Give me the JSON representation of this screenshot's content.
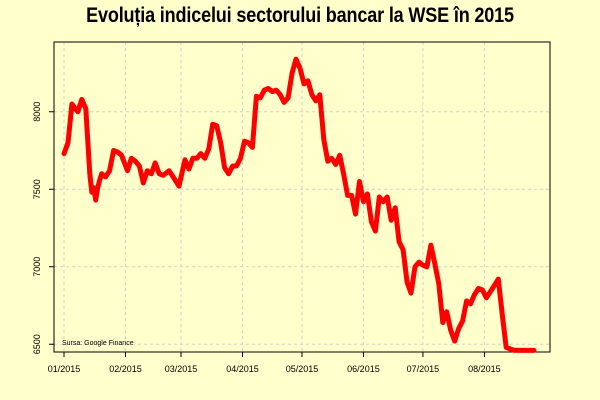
{
  "title": "Evoluția indicelui sectorului bancar la WSE în 2015",
  "source_note": "Sursa: Google Finance",
  "colors": {
    "background": "#ffffcc",
    "line": "#ff0000",
    "grid": "#cfcfcf",
    "axis": "#000000"
  },
  "chart_data": {
    "type": "line",
    "title": "Evoluția indicelui sectorului bancar la WSE în 2015",
    "xlabel": "",
    "ylabel": "",
    "grid": true,
    "ylim": [
      6450,
      8450
    ],
    "xlim": [
      "2015-01-01",
      "2015-08-26"
    ],
    "x_ticks": [
      {
        "date": "2015-01-01",
        "label": "01/2015"
      },
      {
        "date": "2015-02-01",
        "label": "02/2015"
      },
      {
        "date": "2015-03-01",
        "label": "03/2015"
      },
      {
        "date": "2015-04-01",
        "label": "04/2015"
      },
      {
        "date": "2015-05-01",
        "label": "05/2015"
      },
      {
        "date": "2015-06-01",
        "label": "06/2015"
      },
      {
        "date": "2015-07-01",
        "label": "07/2015"
      },
      {
        "date": "2015-08-01",
        "label": "08/2015"
      }
    ],
    "y_ticks": [
      6500,
      7000,
      7500,
      8000
    ],
    "series": [
      {
        "x": [
          "2015-01-01",
          "2015-01-03",
          "2015-01-05",
          "2015-01-08",
          "2015-01-10",
          "2015-01-12",
          "2015-01-14",
          "2015-01-15",
          "2015-01-16",
          "2015-01-17",
          "2015-01-18",
          "2015-01-19",
          "2015-01-20",
          "2015-01-22",
          "2015-01-24",
          "2015-01-26",
          "2015-01-28",
          "2015-01-30",
          "2015-02-02",
          "2015-02-04",
          "2015-02-06",
          "2015-02-08",
          "2015-02-10",
          "2015-02-12",
          "2015-02-14",
          "2015-02-16",
          "2015-02-18",
          "2015-02-20",
          "2015-02-23",
          "2015-02-25",
          "2015-02-28",
          "2015-03-03",
          "2015-03-05",
          "2015-03-07",
          "2015-03-09",
          "2015-03-11",
          "2015-03-13",
          "2015-03-15",
          "2015-03-17",
          "2015-03-19",
          "2015-03-21",
          "2015-03-23",
          "2015-03-25",
          "2015-03-27",
          "2015-03-29",
          "2015-03-31",
          "2015-04-02",
          "2015-04-04",
          "2015-04-06",
          "2015-04-08",
          "2015-04-10",
          "2015-04-12",
          "2015-04-14",
          "2015-04-16",
          "2015-04-18",
          "2015-04-20",
          "2015-04-22",
          "2015-04-24",
          "2015-04-26",
          "2015-04-28",
          "2015-04-30",
          "2015-05-02",
          "2015-05-04",
          "2015-05-06",
          "2015-05-08",
          "2015-05-10",
          "2015-05-12",
          "2015-05-14",
          "2015-05-16",
          "2015-05-18",
          "2015-05-20",
          "2015-05-22",
          "2015-05-24",
          "2015-05-26",
          "2015-05-28",
          "2015-05-30",
          "2015-06-01",
          "2015-06-03",
          "2015-06-05",
          "2015-06-07",
          "2015-06-09",
          "2015-06-11",
          "2015-06-13",
          "2015-06-15",
          "2015-06-17",
          "2015-06-19",
          "2015-06-21",
          "2015-06-23",
          "2015-06-25",
          "2015-06-27",
          "2015-06-29",
          "2015-07-01",
          "2015-07-03",
          "2015-07-05",
          "2015-07-07",
          "2015-07-09",
          "2015-07-11",
          "2015-07-13",
          "2015-07-15",
          "2015-07-17",
          "2015-07-19",
          "2015-07-21",
          "2015-07-23",
          "2015-07-25",
          "2015-07-27",
          "2015-07-29",
          "2015-07-31",
          "2015-08-02",
          "2015-08-04",
          "2015-08-06",
          "2015-08-08",
          "2015-08-10",
          "2015-08-12",
          "2015-08-14",
          "2015-08-16",
          "2015-08-18",
          "2015-08-20",
          "2015-08-21",
          "2015-08-22",
          "2015-08-23",
          "2015-08-24",
          "2015-08-25",
          "2015-08-26"
        ],
        "y": [
          7730,
          7800,
          8050,
          8000,
          8080,
          8020,
          7600,
          7480,
          7510,
          7430,
          7510,
          7560,
          7600,
          7580,
          7620,
          7750,
          7740,
          7720,
          7620,
          7700,
          7680,
          7650,
          7540,
          7620,
          7600,
          7670,
          7600,
          7590,
          7620,
          7580,
          7520,
          7690,
          7630,
          7700,
          7700,
          7730,
          7700,
          7760,
          7920,
          7910,
          7800,
          7640,
          7600,
          7650,
          7650,
          7700,
          7810,
          7800,
          7770,
          8100,
          8090,
          8140,
          8150,
          8130,
          8140,
          8110,
          8060,
          8090,
          8250,
          8340,
          8280,
          8180,
          8200,
          8110,
          8070,
          8110,
          7820,
          7680,
          7700,
          7660,
          7720,
          7600,
          7460,
          7460,
          7340,
          7550,
          7420,
          7470,
          7290,
          7230,
          7450,
          7420,
          7450,
          7300,
          7380,
          7160,
          7110,
          6900,
          6830,
          7000,
          7030,
          7010,
          7000,
          7140,
          7020,
          6890,
          6640,
          6710,
          6590,
          6520,
          6600,
          6650,
          6780,
          6760,
          6820,
          6860,
          6850,
          6800,
          6840,
          6880,
          6920,
          6690,
          6480,
          6470,
          6460,
          6460,
          6460,
          6460,
          6460,
          6460,
          6460,
          6460,
          6460
        ],
        "comment_removed": ""
      }
    ]
  },
  "labels": {
    "x_tick_labels": [
      "01/2015",
      "02/2015",
      "03/2015",
      "04/2015",
      "05/2015",
      "06/2015",
      "07/2015",
      "08/2015"
    ],
    "y_tick_labels": [
      "6500",
      "7000",
      "7500",
      "8000"
    ]
  }
}
